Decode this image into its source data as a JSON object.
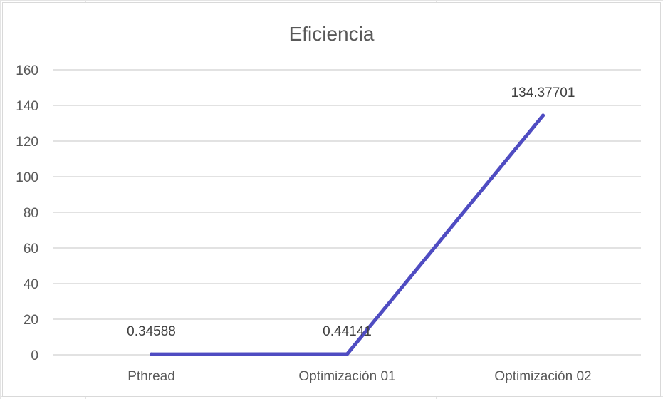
{
  "chart_data": {
    "type": "line",
    "title": "Eficiencia",
    "xlabel": "",
    "ylabel": "",
    "categories": [
      "Pthread",
      "Optimización 01",
      "Optimización 02"
    ],
    "series": [
      {
        "values": [
          0.34588,
          0.44141,
          134.37701
        ],
        "data_labels": [
          "0.34588",
          "0.44141",
          "134.37701"
        ],
        "color": "#4f4cc2"
      }
    ],
    "ylim": [
      0,
      160
    ],
    "yticks": [
      0,
      20,
      40,
      60,
      80,
      100,
      120,
      140,
      160
    ],
    "grid": true,
    "legend": "none"
  }
}
